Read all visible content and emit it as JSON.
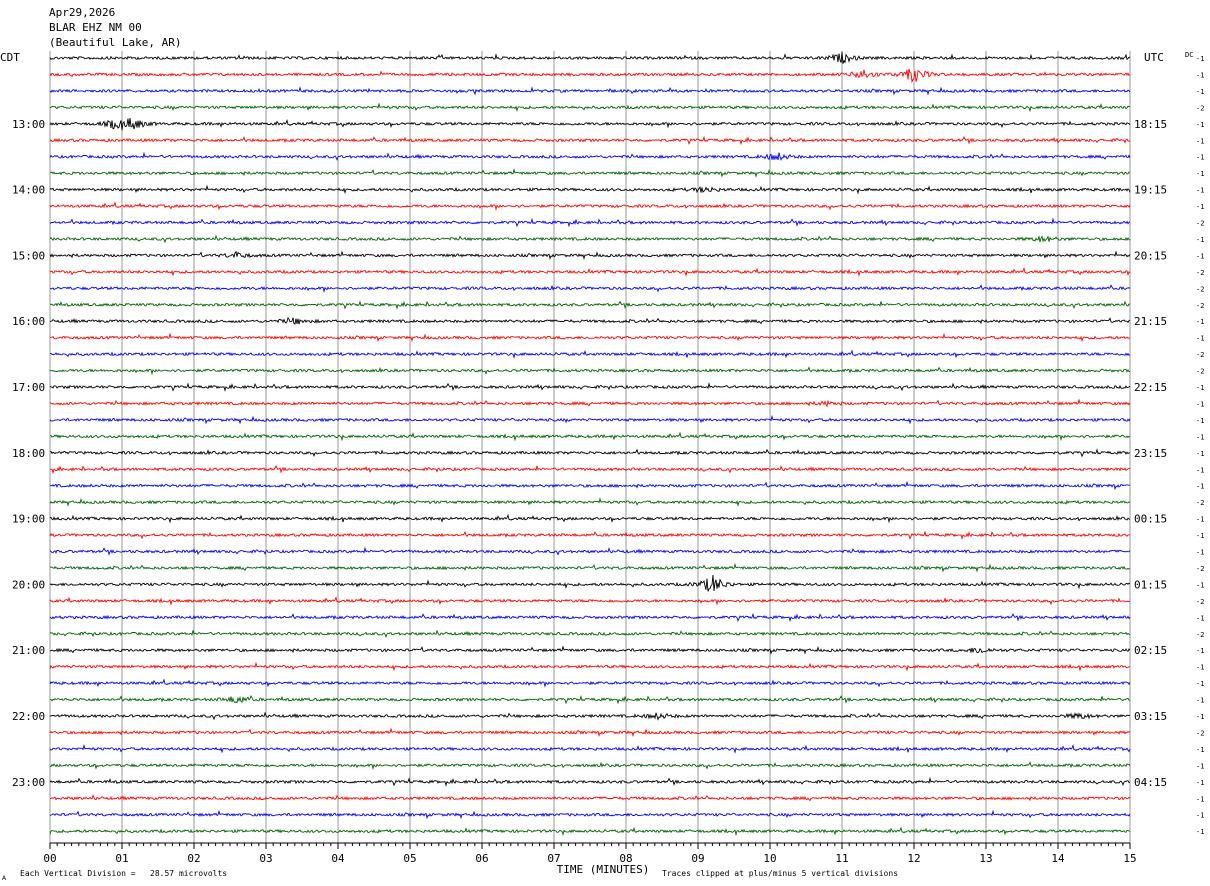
{
  "header": {
    "date": "Apr29,2026",
    "station": "BLAR EHZ NM 00",
    "location": "(Beautiful Lake, AR)"
  },
  "left_zone_label": "CDT",
  "right_zone_label": "UTC",
  "dc_label": "DC",
  "footer": {
    "scale_note": "Each Vertical Division =   28.57 microvolts",
    "clip_note": "Traces clipped at plus/minus 5 vertical divisions",
    "corner_mark": "A"
  },
  "colors": {
    "black": "#000000",
    "red": "#ff0000",
    "blue": "#0000ff",
    "green": "#006400",
    "grid": "#808080"
  },
  "chart_data": {
    "type": "line",
    "title": "",
    "xlabel": "TIME (MINUTES)",
    "ylabel": "",
    "xlim": [
      0,
      15
    ],
    "x_ticks": [
      "00",
      "01",
      "02",
      "03",
      "04",
      "05",
      "06",
      "07",
      "08",
      "09",
      "10",
      "11",
      "12",
      "13",
      "14",
      "15"
    ],
    "rows_per_hour": 4,
    "minutes_per_row": 15,
    "row_count": 48,
    "series_color_cycle": [
      "black",
      "red",
      "blue",
      "green"
    ],
    "left_hour_labels": [
      {
        "row": 4,
        "label": "13:00"
      },
      {
        "row": 8,
        "label": "14:00"
      },
      {
        "row": 12,
        "label": "15:00"
      },
      {
        "row": 16,
        "label": "16:00"
      },
      {
        "row": 20,
        "label": "17:00"
      },
      {
        "row": 24,
        "label": "18:00"
      },
      {
        "row": 28,
        "label": "19:00"
      },
      {
        "row": 32,
        "label": "20:00"
      },
      {
        "row": 36,
        "label": "21:00"
      },
      {
        "row": 40,
        "label": "22:00"
      },
      {
        "row": 44,
        "label": "23:00"
      }
    ],
    "right_hour_labels": [
      {
        "row": 4,
        "label": "18:15"
      },
      {
        "row": 8,
        "label": "19:15"
      },
      {
        "row": 12,
        "label": "20:15"
      },
      {
        "row": 16,
        "label": "21:15"
      },
      {
        "row": 20,
        "label": "22:15"
      },
      {
        "row": 24,
        "label": "23:15"
      },
      {
        "row": 28,
        "label": "00:15"
      },
      {
        "row": 32,
        "label": "01:15"
      },
      {
        "row": 36,
        "label": "02:15"
      },
      {
        "row": 40,
        "label": "03:15"
      },
      {
        "row": 44,
        "label": "04:15"
      }
    ],
    "dc_offsets": [
      "-1",
      "-1",
      "-1",
      "-2",
      "-1",
      "-1",
      "-1",
      "-1",
      "-1",
      "-1",
      "-2",
      "-1",
      "-1",
      "-2",
      "-2",
      "-2",
      "-1",
      "-1",
      "-2",
      "-2",
      "-1",
      "-1",
      "-1",
      "-1",
      "-1",
      "-1",
      "-1",
      "-2",
      "-1",
      "-1",
      "-1",
      "-2",
      "-1",
      "-2",
      "-1",
      "-2",
      "-1",
      "-1",
      "-1",
      "-1",
      "-1",
      "-2",
      "-1",
      "-1",
      "-1",
      "-1",
      "-1",
      "-1"
    ],
    "events": [
      {
        "row": 0,
        "minute": 11.0,
        "amp": 5
      },
      {
        "row": 1,
        "minute": 12.0,
        "amp": 8
      },
      {
        "row": 1,
        "minute": 11.3,
        "amp": 5
      },
      {
        "row": 4,
        "minute": 1.15,
        "amp": 6
      },
      {
        "row": 4,
        "minute": 0.9,
        "amp": 4
      },
      {
        "row": 6,
        "minute": 10.1,
        "amp": 4
      },
      {
        "row": 8,
        "minute": 9.1,
        "amp": 3
      },
      {
        "row": 11,
        "minute": 13.8,
        "amp": 3
      },
      {
        "row": 12,
        "minute": 2.6,
        "amp": 3
      },
      {
        "row": 16,
        "minute": 3.4,
        "amp": 3
      },
      {
        "row": 21,
        "minute": 10.8,
        "amp": 2
      },
      {
        "row": 32,
        "minute": 9.2,
        "amp": 10
      },
      {
        "row": 36,
        "minute": 12.9,
        "amp": 3
      },
      {
        "row": 39,
        "minute": 2.6,
        "amp": 4
      },
      {
        "row": 40,
        "minute": 8.45,
        "amp": 3
      },
      {
        "row": 40,
        "minute": 14.3,
        "amp": 3
      }
    ]
  }
}
